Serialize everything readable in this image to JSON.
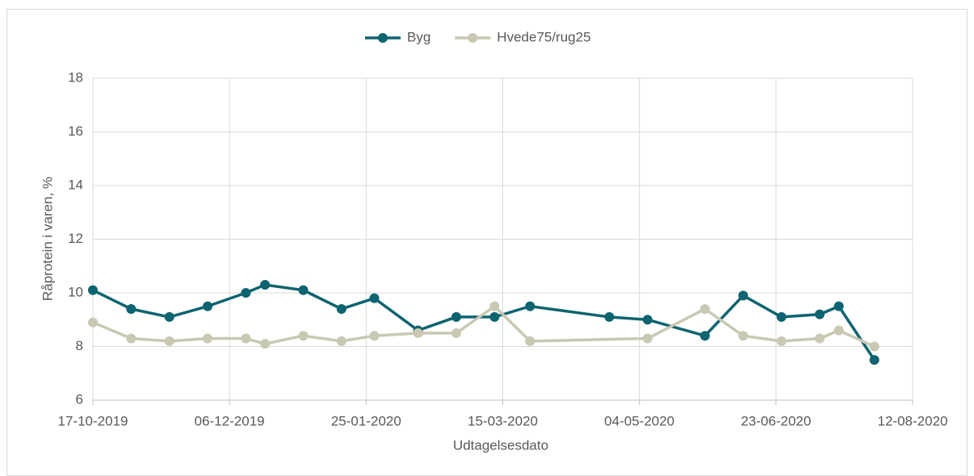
{
  "chart_data": {
    "type": "line",
    "xlabel": "Udtagelsesdato",
    "ylabel": "Råprotein i varen, %",
    "series": [
      {
        "name": "Byg",
        "color": "#0e6470",
        "x": [
          "17-10-2019",
          "31-10-2019",
          "14-11-2019",
          "28-11-2019",
          "12-12-2019",
          "19-12-2019",
          "02-01-2020",
          "16-01-2020",
          "28-01-2020",
          "13-02-2020",
          "27-02-2020",
          "12-03-2020",
          "25-03-2020",
          "23-04-2020",
          "07-05-2020",
          "28-05-2020",
          "11-06-2020",
          "25-06-2020",
          "09-07-2020",
          "16-07-2020",
          "29-07-2020"
        ],
        "values": [
          10.1,
          9.4,
          9.1,
          9.5,
          10.0,
          10.3,
          10.1,
          9.4,
          9.8,
          8.6,
          9.1,
          9.1,
          9.5,
          9.1,
          9.0,
          8.4,
          9.9,
          9.1,
          9.2,
          9.5,
          7.5
        ]
      },
      {
        "name": "Hvede75/rug25",
        "color": "#c9c8b2",
        "x": [
          "17-10-2019",
          "31-10-2019",
          "14-11-2019",
          "28-11-2019",
          "12-12-2019",
          "19-12-2019",
          "02-01-2020",
          "16-01-2020",
          "28-01-2020",
          "13-02-2020",
          "27-02-2020",
          "12-03-2020",
          "25-03-2020",
          "07-05-2020",
          "28-05-2020",
          "11-06-2020",
          "25-06-2020",
          "09-07-2020",
          "16-07-2020",
          "29-07-2020"
        ],
        "values": [
          8.9,
          8.3,
          8.2,
          8.3,
          8.3,
          8.1,
          8.4,
          8.2,
          8.4,
          8.5,
          8.5,
          9.5,
          8.2,
          8.3,
          9.4,
          8.4,
          8.2,
          8.3,
          8.6,
          8.0
        ]
      }
    ],
    "xlim": [
      "17-10-2019",
      "12-08-2020"
    ],
    "xticks": [
      "17-10-2019",
      "06-12-2019",
      "25-01-2020",
      "15-03-2020",
      "04-05-2020",
      "23-06-2020",
      "12-08-2020"
    ],
    "ylim": [
      6,
      18
    ],
    "yticks": [
      6,
      8,
      10,
      12,
      14,
      16,
      18
    ],
    "grid": true,
    "legend": "top"
  }
}
